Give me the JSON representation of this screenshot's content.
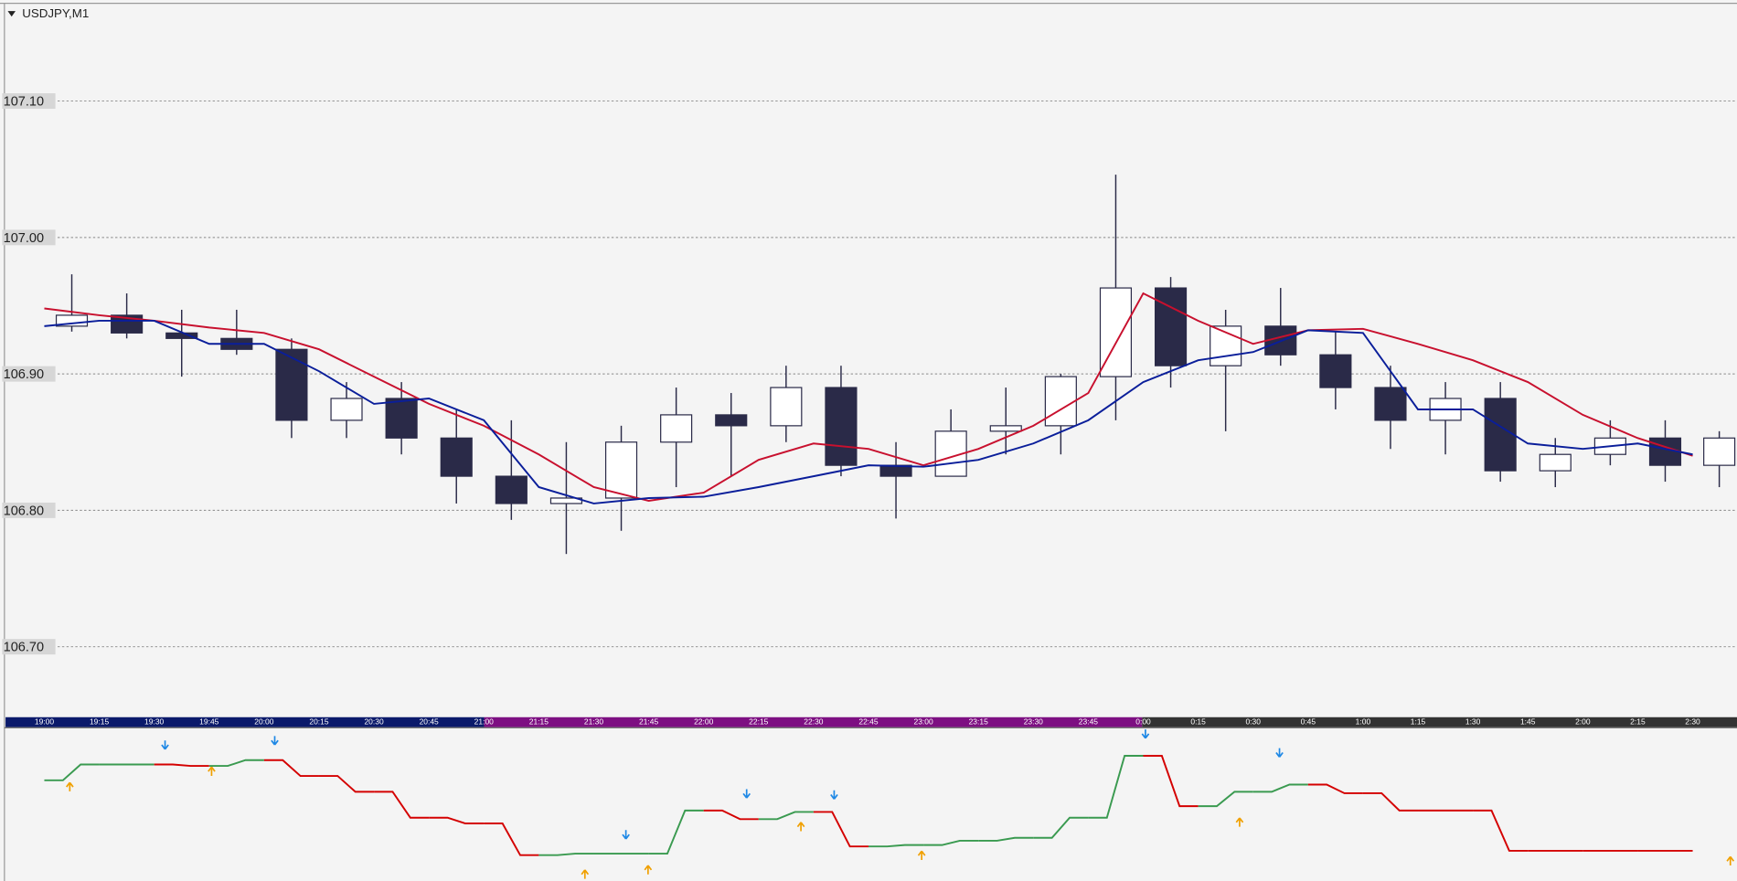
{
  "chart_data": [
    {
      "type": "candlestick",
      "title": "USDJPY,M1",
      "categories": [
        "19:00",
        "19:15",
        "19:30",
        "19:45",
        "20:00",
        "20:15",
        "20:30",
        "20:45",
        "21:00",
        "21:15",
        "21:30",
        "21:45",
        "22:00",
        "22:15",
        "22:30",
        "22:45",
        "23:00",
        "23:15",
        "23:30",
        "23:45",
        "0:00",
        "0:15",
        "0:30",
        "0:45",
        "1:00",
        "1:15",
        "1:30",
        "1:45",
        "2:00",
        "2:15",
        "2:30"
      ],
      "open": [
        106.935,
        106.943,
        106.93,
        106.926,
        106.918,
        106.866,
        106.882,
        106.853,
        106.825,
        106.805,
        106.809,
        106.85,
        106.87,
        106.862,
        106.89,
        106.833,
        106.825,
        106.858,
        106.862,
        106.898,
        106.963,
        106.906,
        106.935,
        106.914,
        106.89,
        106.866,
        106.882,
        106.829,
        106.841,
        106.853,
        106.833
      ],
      "high": [
        106.973,
        106.959,
        106.947,
        106.947,
        106.926,
        106.894,
        106.894,
        106.874,
        106.866,
        106.85,
        106.862,
        106.89,
        106.886,
        106.906,
        106.906,
        106.85,
        106.874,
        106.89,
        106.9,
        107.046,
        106.971,
        106.947,
        106.963,
        106.931,
        106.906,
        106.894,
        106.894,
        106.853,
        106.866,
        106.866,
        106.858
      ],
      "low": [
        106.931,
        106.926,
        106.898,
        106.914,
        106.853,
        106.853,
        106.841,
        106.805,
        106.793,
        106.768,
        106.785,
        106.817,
        106.825,
        106.85,
        106.825,
        106.794,
        106.825,
        106.841,
        106.841,
        106.866,
        106.89,
        106.858,
        106.906,
        106.874,
        106.845,
        106.841,
        106.821,
        106.817,
        106.833,
        106.821,
        106.817
      ],
      "close": [
        106.943,
        106.93,
        106.926,
        106.918,
        106.866,
        106.882,
        106.853,
        106.825,
        106.805,
        106.809,
        106.85,
        106.87,
        106.862,
        106.89,
        106.833,
        106.825,
        106.858,
        106.862,
        106.898,
        106.963,
        106.906,
        106.935,
        106.914,
        106.89,
        106.866,
        106.882,
        106.829,
        106.841,
        106.853,
        106.833,
        106.853
      ],
      "up_color": "#ffffff",
      "down_color": "#2a2a48",
      "line_color": "#2a2a48",
      "series": [
        {
          "color": "#c8102e",
          "values": [
            106.948,
            106.943,
            106.939,
            106.934,
            106.93,
            106.918,
            106.898,
            106.878,
            106.862,
            106.841,
            106.817,
            106.807,
            106.813,
            106.837,
            106.849,
            106.845,
            106.833,
            106.845,
            106.862,
            106.886,
            106.959,
            106.939,
            106.922,
            106.932,
            106.933,
            106.922,
            106.91,
            106.894,
            106.87,
            106.853,
            106.84
          ]
        },
        {
          "color": "#0a1e9a",
          "values": [
            106.935,
            106.939,
            106.939,
            106.922,
            106.922,
            106.902,
            106.878,
            106.882,
            106.866,
            106.817,
            106.805,
            106.809,
            106.81,
            106.817,
            106.825,
            106.833,
            106.832,
            106.837,
            106.849,
            106.866,
            106.894,
            106.91,
            106.916,
            106.932,
            106.93,
            106.874,
            106.874,
            106.849,
            106.845,
            106.849,
            106.841
          ]
        }
      ],
      "ylim": [
        106.65,
        107.17
      ],
      "yticks": [
        {
          "value": 106.7,
          "label": "106.70"
        },
        {
          "value": 106.8,
          "label": "106.80"
        },
        {
          "value": 106.9,
          "label": "106.90"
        },
        {
          "value": 107.0,
          "label": "107.00"
        },
        {
          "value": 107.1,
          "label": "107.10"
        }
      ],
      "grid": true
    },
    {
      "type": "line",
      "values": [
        70,
        81,
        81,
        80,
        84,
        73,
        62,
        44,
        40,
        18,
        19,
        19,
        49,
        43,
        48,
        24,
        25,
        28,
        30,
        44,
        87,
        52,
        62,
        67,
        61,
        49,
        49,
        21,
        21,
        21,
        21
      ],
      "up_color": "#3a9a50",
      "down_color": "#d40000",
      "ylim": [
        0,
        100
      ]
    }
  ]
}
